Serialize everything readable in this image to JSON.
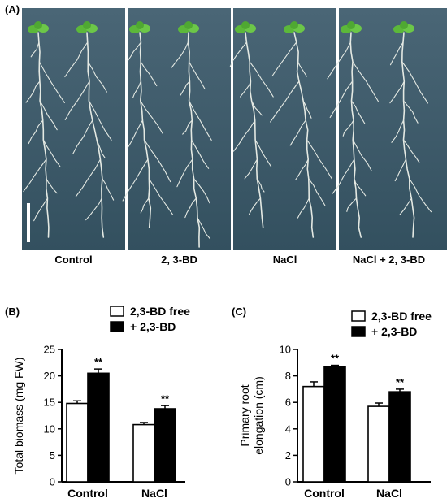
{
  "panel_a": {
    "label": "(A)",
    "captions": [
      "Control",
      "2, 3-BD",
      "NaCl",
      "NaCl + 2, 3-BD"
    ]
  },
  "panel_b": {
    "label": "(B)"
  },
  "panel_c": {
    "label": "(C)"
  },
  "colors": {
    "agar": "#3e5a6a",
    "root": "#e8ece6",
    "leaf": "#5cb83a",
    "bar_free": "#ffffff",
    "bar_bd": "#000000"
  },
  "chart_data": [
    {
      "type": "bar",
      "title": "",
      "xlabel": "",
      "ylabel": "Total biomass (mg FW)",
      "categories": [
        "Control",
        "NaCl"
      ],
      "series": [
        {
          "name": "2,3-BD free",
          "values": [
            14.8,
            10.8
          ],
          "errors": [
            0.5,
            0.4
          ]
        },
        {
          "name": "+ 2,3-BD",
          "values": [
            20.5,
            13.8
          ],
          "errors": [
            0.8,
            0.6
          ]
        }
      ],
      "annotations": [
        "**",
        "**"
      ],
      "ylim": [
        0,
        25
      ],
      "yticks": [
        "0",
        "5",
        "10",
        "15",
        "20",
        "25"
      ],
      "legend": "top"
    },
    {
      "type": "bar",
      "title": "",
      "xlabel": "",
      "ylabel_lines": [
        "Primary root",
        "elongation (cm)"
      ],
      "categories": [
        "Control",
        "NaCl"
      ],
      "series": [
        {
          "name": "2,3-BD free",
          "values": [
            7.2,
            5.7
          ],
          "errors": [
            0.35,
            0.25
          ]
        },
        {
          "name": "+ 2,3-BD",
          "values": [
            8.7,
            6.8
          ],
          "errors": [
            0.1,
            0.2
          ]
        }
      ],
      "annotations": [
        "**",
        "**"
      ],
      "ylim": [
        0,
        10
      ],
      "yticks": [
        "0",
        "2",
        "4",
        "6",
        "8",
        "10"
      ],
      "legend": "top"
    }
  ]
}
